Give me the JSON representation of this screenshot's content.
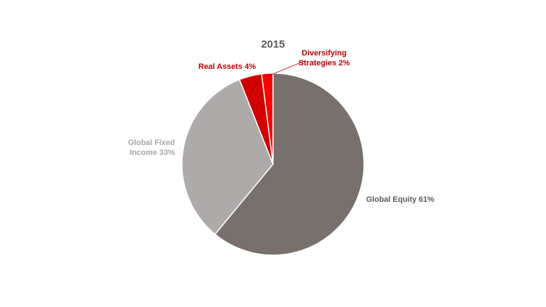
{
  "chart_data": {
    "type": "pie",
    "title": "2015",
    "slices": [
      {
        "label": "Global Equity",
        "value": 61,
        "display": "Global Equity 61%",
        "color": "#77706d",
        "label_color": "#595959"
      },
      {
        "label": "Global Fixed Income",
        "value": 33,
        "display_lines": [
          "Global Fixed",
          "Income 33%"
        ],
        "color": "#aeaaaa",
        "label_color": "#a6a6a6"
      },
      {
        "label": "Real Assets",
        "value": 4,
        "display": "Real Assets 4%",
        "color": "#d00000",
        "label_color": "#c00000"
      },
      {
        "label": "Diversifying Strategies",
        "value": 2,
        "display_lines": [
          "Diversifying",
          "Strategies 2%"
        ],
        "color": "#ff0000",
        "label_color": "#c00000"
      }
    ],
    "legend": "none",
    "start_angle": "12 o'clock, clockwise"
  }
}
